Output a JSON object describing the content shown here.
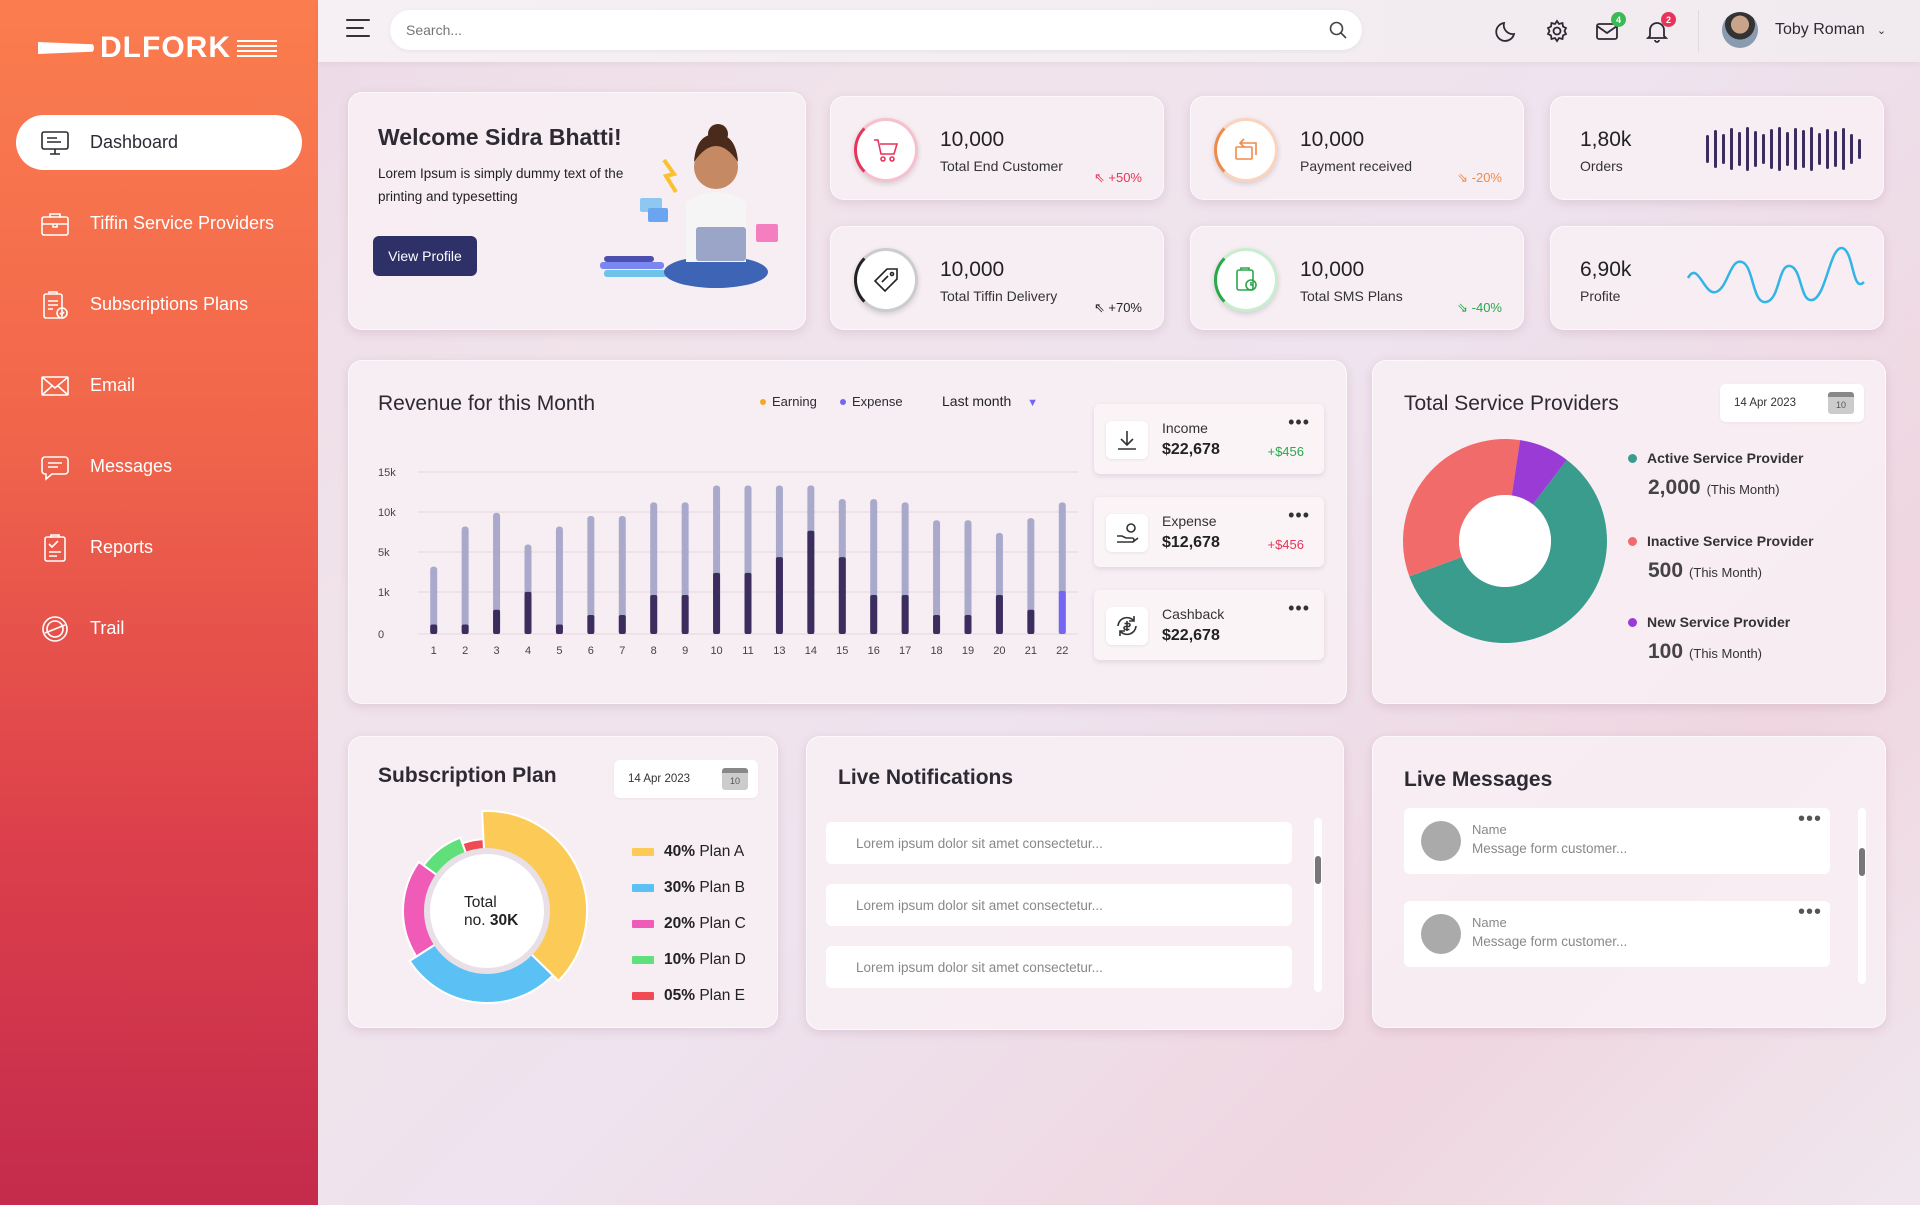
{
  "brand": {
    "name": "DLFORK"
  },
  "sidebar": {
    "items": [
      {
        "label": "Dashboard",
        "icon": "monitor-icon",
        "active": true
      },
      {
        "label": "Tiffin Service Providers",
        "icon": "briefcase-icon"
      },
      {
        "label": "Subscriptions Plans",
        "icon": "clipboard-check-icon"
      },
      {
        "label": "Email",
        "icon": "envelope-icon"
      },
      {
        "label": "Messages",
        "icon": "chat-bubble-icon"
      },
      {
        "label": "Reports",
        "icon": "report-clipboard-icon"
      },
      {
        "label": "Trail",
        "icon": "trial-stamp-icon"
      }
    ]
  },
  "header": {
    "search_placeholder": "Search...",
    "mail_badge": "4",
    "bell_badge": "2",
    "user_name": "Toby Roman"
  },
  "welcome": {
    "title": "Welcome Sidra Bhatti!",
    "text": "Lorem Ipsum is simply dummy text of the printing and typesetting",
    "button": "View Profile"
  },
  "stats": [
    {
      "value": "10,000",
      "label": "Total End Customer",
      "change": "+50%",
      "direction": "up",
      "color": "#e8345a",
      "icon": "cart-icon"
    },
    {
      "value": "10,000",
      "label": "Payment received",
      "change": "-20%",
      "direction": "down",
      "color": "#f08a4b",
      "icon": "payment-icon"
    },
    {
      "value": "10,000",
      "label": "Total Tiffin Delivery",
      "change": "+70%",
      "direction": "up",
      "color": "#222222",
      "icon": "tag-icon"
    },
    {
      "value": "10,000",
      "label": "Total SMS Plans",
      "change": "-40%",
      "direction": "down",
      "color": "#2aa84a",
      "icon": "sms-plan-icon"
    }
  ],
  "mini_stats": [
    {
      "value": "1,80k",
      "label": "Orders",
      "sparkline": "bars"
    },
    {
      "value": "6,90k",
      "label": "Profite",
      "sparkline": "wave"
    }
  ],
  "revenue": {
    "title": "Revenue for this Month",
    "legend_earning": "Earning",
    "legend_expense": "Expense",
    "period": "Last month",
    "boxes": [
      {
        "label": "Income",
        "value": "$22,678",
        "delta": "+$456",
        "delta_color": "#2aa84a",
        "icon": "download-icon"
      },
      {
        "label": "Expense",
        "value": "$12,678",
        "delta": "+$456",
        "delta_color": "#e8345a",
        "icon": "hand-money-icon"
      },
      {
        "label": "Cashback",
        "value": "$22,678",
        "delta": "",
        "icon": "cashback-icon"
      }
    ]
  },
  "chart_data": {
    "type": "bar",
    "title": "Revenue for this Month",
    "categories": [
      "1",
      "2",
      "3",
      "4",
      "5",
      "6",
      "7",
      "8",
      "9",
      "10",
      "11",
      "13",
      "14",
      "15",
      "16",
      "17",
      "18",
      "19",
      "20",
      "21",
      "22"
    ],
    "y_tick_labels": [
      "0",
      "1k",
      "5k",
      "10k",
      "15k"
    ],
    "series": [
      {
        "name": "Earning",
        "color": "#a9aacb",
        "values": [
          6.4,
          10.2,
          11.5,
          8.5,
          10.2,
          11.2,
          11.2,
          12.5,
          12.5,
          14.1,
          14.1,
          14.1,
          14.1,
          12.8,
          12.8,
          12.5,
          10.8,
          10.8,
          9.6,
          11.0,
          12.5
        ]
      },
      {
        "name": "Expense",
        "color": "#3b2d5e",
        "values": [
          0.9,
          0.9,
          2.3,
          4.0,
          0.9,
          1.8,
          1.8,
          3.7,
          3.7,
          5.8,
          5.8,
          7.3,
          9.8,
          7.3,
          3.7,
          3.7,
          1.8,
          1.8,
          3.7,
          2.3,
          4.1
        ]
      }
    ],
    "highlight_color": "#7466f0",
    "ylim": [
      0,
      15
    ]
  },
  "service_providers": {
    "title": "Total Service Providers",
    "date": "14 Apr 2023",
    "calendar_day": "10",
    "items": [
      {
        "name": "Active Service Provider",
        "value": "2,000",
        "period": "(This Month)",
        "color": "#3a9c8c",
        "share": 0.59
      },
      {
        "name": "Inactive Service Provider",
        "value": "500",
        "period": "(This Month)",
        "color": "#f26b6b",
        "share": 0.33
      },
      {
        "name": "New Service Provider",
        "value": "100",
        "period": "(This Month)",
        "color": "#9b3bd6",
        "share": 0.08
      }
    ]
  },
  "subscription": {
    "title": "Subscription Plan",
    "date": "14 Apr 2023",
    "calendar_day": "10",
    "center_line1": "Total",
    "center_prefix": "no.",
    "center_value": "30K",
    "plans": [
      {
        "pct": "40%",
        "name": "Plan A",
        "color": "#fcca56",
        "share": 40
      },
      {
        "pct": "30%",
        "name": "Plan B",
        "color": "#5bc1f4",
        "share": 30
      },
      {
        "pct": "20%",
        "name": "Plan C",
        "color": "#f05bb8",
        "share": 20
      },
      {
        "pct": "10%",
        "name": "Plan D",
        "color": "#5fe07a",
        "share": 10
      },
      {
        "pct": "05%",
        "name": "Plan E",
        "color": "#f24a55",
        "share": 5
      }
    ]
  },
  "notifications": {
    "title": "Live Notifications",
    "items": [
      "Lorem ipsum dolor sit amet consectetur...",
      "Lorem ipsum dolor sit amet consectetur...",
      "Lorem ipsum dolor sit amet consectetur..."
    ]
  },
  "messages": {
    "title": "Live Messages",
    "items": [
      {
        "name": "Name",
        "text": "Message form customer..."
      },
      {
        "name": "Name",
        "text": "Message form customer..."
      }
    ]
  }
}
